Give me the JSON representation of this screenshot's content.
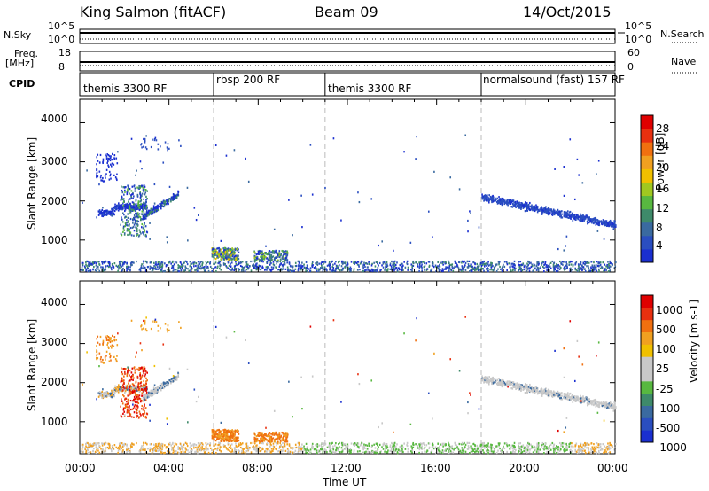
{
  "header": {
    "title": "King Salmon (fitACF)",
    "beam": "Beam 09",
    "date": "14/Oct/2015"
  },
  "top_panels": {
    "nsky_label": "N.Sky",
    "nsky_ticks": [
      "10^5",
      "10^0"
    ],
    "nsearch_label": "N.Search",
    "nsearch_ticks": [
      "10^5",
      "10^0"
    ],
    "freq_label": "Freq.",
    "freq_unit": "[MHz]",
    "freq_ticks": [
      "18",
      "8"
    ],
    "nave_label": "Nave",
    "nave_ticks": [
      "60",
      "0"
    ],
    "cpid_label": "CPID"
  },
  "cpid_segments": [
    {
      "label": "themis 3300 RF",
      "start": 0,
      "end": 6
    },
    {
      "label": "rbsp 200 RF",
      "start": 6,
      "end": 11
    },
    {
      "label": "themis 3300 RF",
      "start": 11,
      "end": 18
    },
    {
      "label": "normalsound (fast) 157 RF",
      "start": 18,
      "end": 24
    }
  ],
  "colors": {
    "power": [
      "#1a2fd0",
      "#2a4ec0",
      "#3a6aa0",
      "#3e8a6a",
      "#58b840",
      "#a0c820",
      "#f0c000",
      "#f0a020",
      "#f07010",
      "#e83010",
      "#e00000"
    ],
    "velocity": [
      "#e00000",
      "#e83010",
      "#f07010",
      "#f0a020",
      "#f0c000",
      "#c8c8c8",
      "#c8c8c8",
      "#58b840",
      "#3e8a6a",
      "#3a6aa0",
      "#2a4ec0",
      "#1a2fd0"
    ],
    "vertical_marker": "#bbbbbb"
  },
  "chart_data": [
    {
      "type": "heatmap",
      "name": "power",
      "ylabel": "Slant Range [km]",
      "yticks": [
        "4000",
        "3000",
        "2000",
        "1000"
      ],
      "ylim": [
        180,
        4600
      ],
      "xlim": [
        0,
        24
      ],
      "colorbar_label": "Power [dB]",
      "colorbar_ticks": [
        "28",
        "24",
        "20",
        "16",
        "12",
        "8",
        "4"
      ],
      "colorbar_range": [
        0,
        30
      ],
      "vertical_markers": [
        6,
        11,
        18
      ]
    },
    {
      "type": "heatmap",
      "name": "velocity",
      "ylabel": "Slant Range [km]",
      "yticks": [
        "4000",
        "3000",
        "2000",
        "1000"
      ],
      "ylim": [
        180,
        4600
      ],
      "xlim": [
        0,
        24
      ],
      "colorbar_label": "Velocity [m s-1]",
      "colorbar_ticks": [
        "1000",
        "500",
        "100",
        "25",
        "-25",
        "-100",
        "-500",
        "-1000"
      ],
      "vertical_markers": [
        6,
        11,
        18
      ]
    }
  ],
  "x_axis": {
    "ticks": [
      "00:00",
      "04:00",
      "08:00",
      "12:00",
      "16:00",
      "20:00",
      "00:00"
    ],
    "label": "Time UT"
  }
}
